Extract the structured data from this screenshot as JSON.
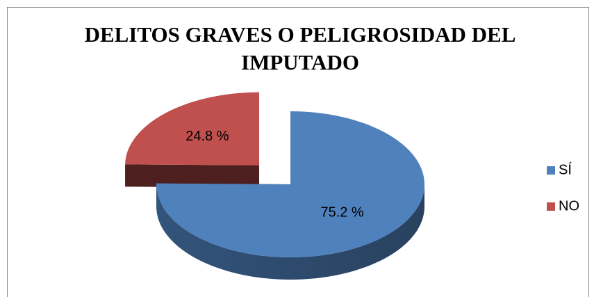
{
  "chart_data": {
    "type": "pie",
    "title": "DELITOS GRAVES O PELIGROSIDAD DEL IMPUTADO",
    "categories": [
      "SÍ",
      "NO"
    ],
    "values": [
      75.2,
      24.8
    ],
    "value_labels": [
      "75.2 %",
      "24.8 %"
    ],
    "colors": [
      "#4f81bd",
      "#c0504d"
    ],
    "explode": [
      false,
      true
    ],
    "legend": "right"
  }
}
